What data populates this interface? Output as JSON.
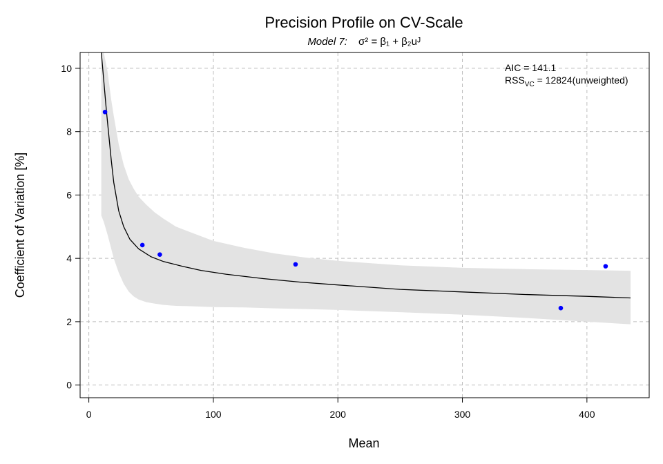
{
  "chart_data": {
    "type": "scatter",
    "title": "Precision Profile on CV-Scale",
    "subtitle": {
      "model_label": "Model 7:",
      "formula": "σ² = β₁ + β₂uᴶ"
    },
    "xlabel": "Mean",
    "ylabel": "Coefficient of Variation [%]",
    "xlim": [
      -7,
      450
    ],
    "ylim": [
      -0.4,
      10.5
    ],
    "xticks": [
      0,
      100,
      200,
      300,
      400
    ],
    "yticks": [
      0,
      2,
      4,
      6,
      8,
      10
    ],
    "grid": true,
    "points": {
      "color": "#0000ff",
      "x": [
        13,
        43,
        57,
        166,
        379,
        415
      ],
      "y": [
        8.62,
        4.42,
        4.12,
        3.81,
        2.43,
        3.75
      ]
    },
    "fit_curve": {
      "color": "#000000",
      "x": [
        10,
        12,
        14,
        16,
        18,
        20,
        24,
        28,
        33,
        40,
        50,
        60,
        75,
        90,
        110,
        140,
        170,
        200,
        250,
        300,
        350,
        400,
        435
      ],
      "y": [
        10.5,
        9.6,
        8.7,
        7.9,
        7.1,
        6.4,
        5.5,
        5.0,
        4.6,
        4.3,
        4.05,
        3.9,
        3.75,
        3.62,
        3.5,
        3.36,
        3.25,
        3.16,
        3.02,
        2.94,
        2.86,
        2.8,
        2.75
      ]
    },
    "confidence_band": {
      "color": "#e3e3e3",
      "x": [
        10,
        12,
        15,
        18,
        20,
        24,
        28,
        32,
        36,
        40,
        46,
        53,
        60,
        70,
        80,
        100,
        125,
        150,
        175,
        200,
        250,
        300,
        350,
        400,
        435
      ],
      "upper": [
        10.5,
        10.5,
        9.9,
        9.0,
        8.5,
        7.6,
        6.95,
        6.5,
        6.2,
        5.95,
        5.7,
        5.45,
        5.25,
        5.0,
        4.85,
        4.55,
        4.33,
        4.15,
        4.02,
        3.92,
        3.78,
        3.7,
        3.66,
        3.63,
        3.61
      ],
      "lower": [
        5.35,
        5.15,
        4.75,
        4.3,
        4.0,
        3.55,
        3.2,
        2.95,
        2.8,
        2.7,
        2.62,
        2.57,
        2.53,
        2.5,
        2.49,
        2.46,
        2.45,
        2.42,
        2.4,
        2.37,
        2.3,
        2.22,
        2.12,
        2.0,
        1.92
      ]
    },
    "annotations": {
      "aic": "AIC = 141.1",
      "rss_prefix": "RSS",
      "rss_subscript": "VC",
      "rss_value": " = 12824(unweighted)"
    }
  }
}
